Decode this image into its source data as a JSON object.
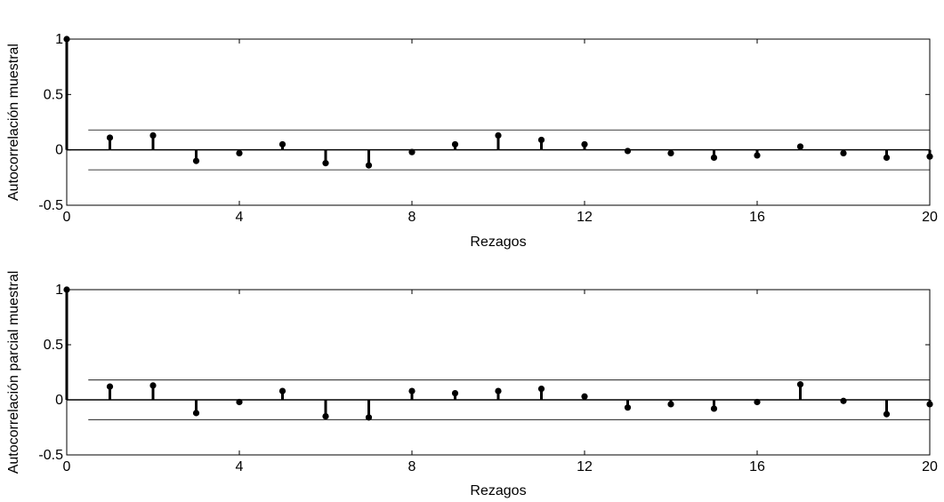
{
  "chart_data": [
    {
      "type": "stem",
      "title": "",
      "xlabel": "Rezagos",
      "ylabel": "Autocorrelación muestral",
      "xlim": [
        0,
        20
      ],
      "ylim": [
        -0.5,
        1
      ],
      "xticks": [
        "0",
        "4",
        "8",
        "12",
        "16",
        "20"
      ],
      "yticks": [
        "-0.5",
        "0",
        "0.5",
        "1"
      ],
      "bounds": [
        0.18,
        -0.18
      ],
      "x": [
        0,
        1,
        2,
        3,
        4,
        5,
        6,
        7,
        8,
        9,
        10,
        11,
        12,
        13,
        14,
        15,
        16,
        17,
        18,
        19,
        20
      ],
      "values": [
        1,
        0.11,
        0.13,
        -0.1,
        -0.03,
        0.05,
        -0.12,
        -0.14,
        -0.02,
        0.05,
        0.13,
        0.09,
        0.05,
        -0.01,
        -0.03,
        -0.07,
        -0.05,
        0.03,
        -0.03,
        -0.07,
        -0.06
      ]
    },
    {
      "type": "stem",
      "title": "",
      "xlabel": "Rezagos",
      "ylabel": "Autocorrelación parcial muestral",
      "xlim": [
        0,
        20
      ],
      "ylim": [
        -0.5,
        1
      ],
      "xticks": [
        "0",
        "4",
        "8",
        "12",
        "16",
        "20"
      ],
      "yticks": [
        "-0.5",
        "0",
        "0.5",
        "1"
      ],
      "bounds": [
        0.18,
        -0.18
      ],
      "x": [
        0,
        1,
        2,
        3,
        4,
        5,
        6,
        7,
        8,
        9,
        10,
        11,
        12,
        13,
        14,
        15,
        16,
        17,
        18,
        19,
        20
      ],
      "values": [
        1,
        0.12,
        0.13,
        -0.12,
        -0.02,
        0.08,
        -0.15,
        -0.16,
        0.08,
        0.06,
        0.08,
        0.1,
        0.03,
        -0.07,
        -0.04,
        -0.08,
        -0.02,
        0.14,
        -0.01,
        -0.13,
        -0.04
      ]
    }
  ],
  "colors": {
    "stem": "#000000",
    "axis": "#000000",
    "background": "#ffffff"
  }
}
